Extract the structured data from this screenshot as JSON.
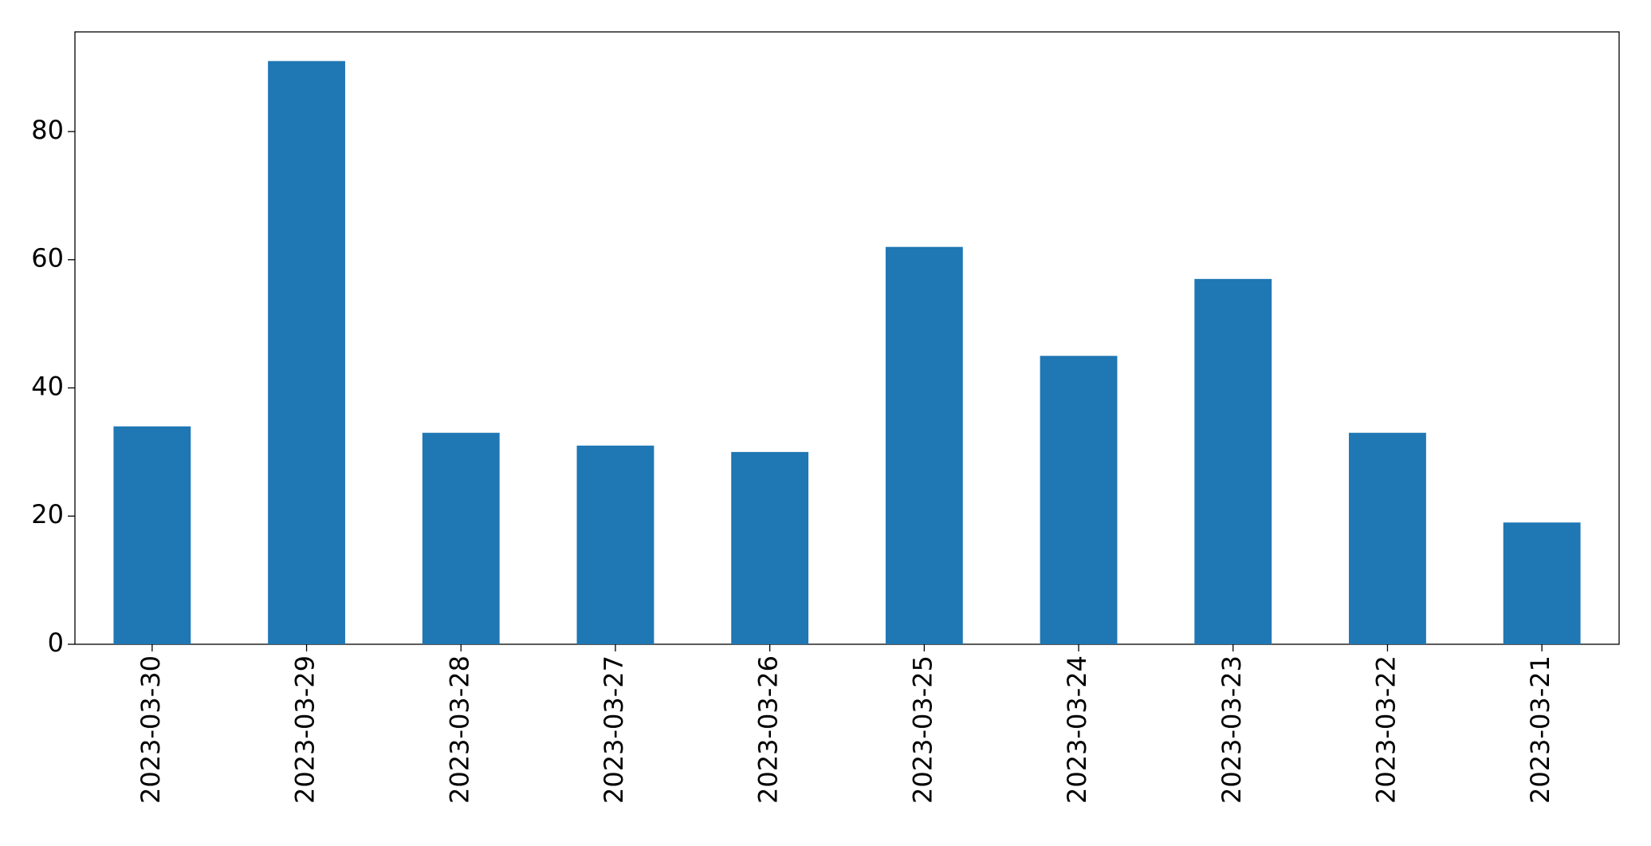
{
  "chart_data": {
    "type": "bar",
    "categories": [
      "2023-03-30",
      "2023-03-29",
      "2023-03-28",
      "2023-03-27",
      "2023-03-26",
      "2023-03-25",
      "2023-03-24",
      "2023-03-23",
      "2023-03-22",
      "2023-03-21"
    ],
    "values": [
      34,
      91,
      33,
      31,
      30,
      62,
      45,
      57,
      33,
      19
    ],
    "color": "#1f77b4",
    "ylim": [
      0,
      95.55
    ],
    "yticks": [
      0,
      20,
      40,
      60,
      80
    ],
    "grid": false
  }
}
